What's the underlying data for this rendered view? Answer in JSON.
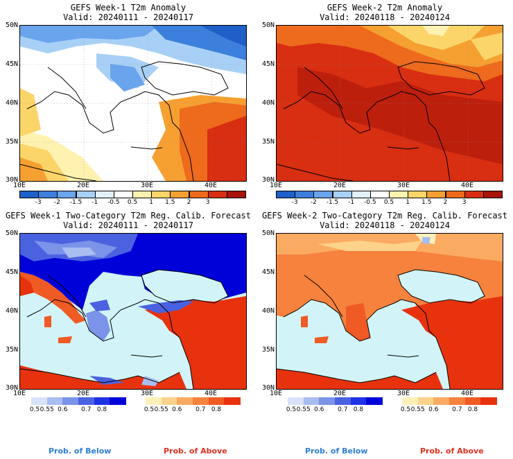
{
  "panels": [
    {
      "title1": "GEFS Week-1 T2m Anomaly",
      "title2": "Valid: 20240111 - 20240117"
    },
    {
      "title1": "GEFS Week-2 T2m Anomaly",
      "title2": "Valid: 20240118 - 20240124"
    },
    {
      "title1": "GEFS Week-1 Two-Category T2m Reg. Calib. Forecast",
      "title2": "Valid: 20240111 - 20240117"
    },
    {
      "title1": "GEFS Week-2 Two-Category T2m Reg. Calib. Forecast",
      "title2": "Valid: 20240118 - 20240124"
    }
  ],
  "lat_ticks": [
    "50N",
    "45N",
    "40N",
    "35N",
    "30N"
  ],
  "lon_ticks": [
    "10E",
    "20E",
    "30E",
    "40E"
  ],
  "anomaly_colorbar": {
    "labels": [
      "-3",
      "-2",
      "-1.5",
      "-1",
      "-0.5",
      "0.5",
      "1",
      "1.5",
      "2",
      "3"
    ],
    "colors": [
      "#1f5fc8",
      "#3c7fdc",
      "#6aa4ec",
      "#a8d0f6",
      "#e2f0fb",
      "#ffffff",
      "#fff2b0",
      "#fcd56a",
      "#f6a032",
      "#ee6a1c",
      "#d82e12",
      "#a8140a"
    ]
  },
  "prob_colorbar": {
    "labels": [
      "0.5",
      "0.55",
      "0.6",
      "0.7",
      "0.8"
    ],
    "below_colors": [
      "#d8e2f8",
      "#a9bdf0",
      "#7b93e8",
      "#4a62e0",
      "#1e32e6",
      "#0000d8"
    ],
    "above_colors": [
      "#fff0b8",
      "#fdd28a",
      "#fbaa62",
      "#f6823e",
      "#f05a24",
      "#e8320e"
    ]
  },
  "footer": {
    "below": "Prob. of Below",
    "above": "Prob. of Above"
  },
  "colors": {
    "sea": "#d2f4f8",
    "land_text": "#000000",
    "below_label": "#2c7fd6",
    "above_label": "#e0301e"
  }
}
